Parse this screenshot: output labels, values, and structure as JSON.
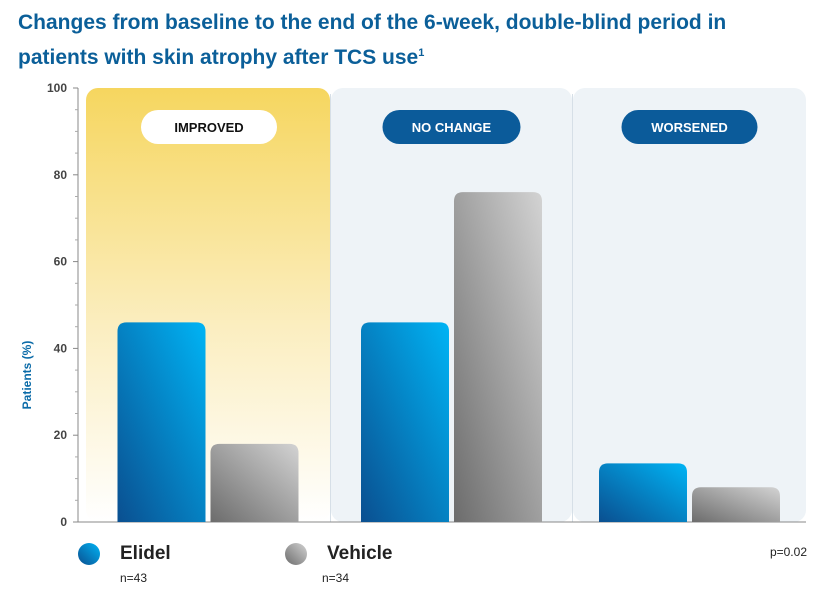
{
  "title": "Changes from baseline to the end of the 6-week, double-blind period in patients with skin atrophy after TCS use",
  "title_superscript": "1",
  "colors": {
    "title": "#0b5f99",
    "elidel_light": "#00b4f5",
    "elidel_dark": "#0a4f90",
    "vehicle_light": "#d3d3d3",
    "vehicle_dark": "#6c6c6c",
    "improved_band": "#f6d65f",
    "neutral_band": "#eef3f7",
    "pill_blue": "#0b5b9a"
  },
  "chart_data": {
    "type": "bar",
    "categories": [
      "IMPROVED",
      "NO CHANGE",
      "WORSENED"
    ],
    "series": [
      {
        "name": "Elidel",
        "n": "n=43",
        "values": [
          46,
          46,
          13.5
        ]
      },
      {
        "name": "Vehicle",
        "n": "n=34",
        "values": [
          18,
          76,
          8
        ]
      }
    ],
    "ylabel": "Patients (%)",
    "ylim": [
      0,
      100
    ],
    "yticks": [
      "0",
      "20",
      "40",
      "60",
      "80",
      "100"
    ],
    "legend_position": "bottom-left",
    "annotation": "p=0.02"
  }
}
